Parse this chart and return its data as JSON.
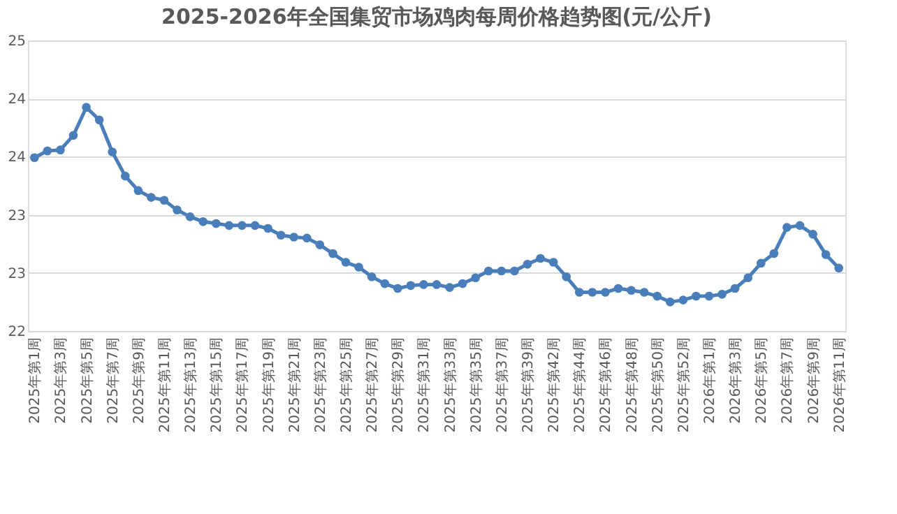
{
  "chart_data": {
    "type": "line",
    "title": "2025-2026年全国集贸市场鸡肉每周价格趋势图(元/公斤)",
    "categories": [
      "2025年第1周",
      null,
      "2025年第3周",
      null,
      "2025年第5周",
      null,
      "2025年第7周",
      null,
      "2025年第9周",
      null,
      "2025年第11周",
      null,
      "2025年第13周",
      null,
      "2025年第15周",
      null,
      "2025年第17周",
      null,
      "2025年第19周",
      null,
      "2025年第21周",
      null,
      "2025年第23周",
      null,
      "2025年第25周",
      null,
      "2025年第27周",
      null,
      "2025年第29周",
      null,
      "2025年第31周",
      null,
      "2025年第33周",
      null,
      "2025年第35周",
      null,
      "2025年第37周",
      null,
      "2025年第39周",
      null,
      "2025年第42周",
      null,
      "2025年第44周",
      null,
      "2025年第46周",
      null,
      "2025年第48周",
      null,
      "2025年第50周",
      null,
      "2025年第52周",
      null,
      "2026年第1周",
      null,
      "2026年第3周",
      null,
      "2026年第5周",
      null,
      "2026年第7周",
      null,
      "2026年第9周",
      null,
      "2026年第11周"
    ],
    "series": [
      {
        "color": "#4a7ebb",
        "values": [
          23.79,
          23.86,
          23.87,
          24.02,
          24.31,
          24.18,
          23.85,
          23.6,
          23.45,
          23.38,
          23.35,
          23.25,
          23.18,
          23.13,
          23.11,
          23.09,
          23.09,
          23.09,
          23.06,
          22.99,
          22.97,
          22.96,
          22.89,
          22.8,
          22.71,
          22.66,
          22.56,
          22.49,
          22.44,
          22.47,
          22.48,
          22.48,
          22.45,
          22.49,
          22.55,
          22.62,
          22.62,
          22.62,
          22.69,
          22.75,
          22.71,
          22.56,
          22.4,
          22.4,
          22.4,
          22.44,
          22.42,
          22.4,
          22.36,
          22.3,
          22.32,
          22.36,
          22.36,
          22.38,
          22.44,
          22.55,
          22.7,
          22.8,
          23.07,
          23.09,
          23.0,
          22.79,
          22.65
        ]
      }
    ],
    "ylim": [
      22,
      25
    ],
    "yticks": [
      22,
      {
        "value": 22.6,
        "label": "23"
      },
      {
        "value": 23.2,
        "label": "23"
      },
      {
        "value": 23.8,
        "label": "24"
      },
      {
        "value": 24.4,
        "label": "24"
      },
      25
    ],
    "grid": "y",
    "marker": "circle",
    "line_style": "solid"
  }
}
